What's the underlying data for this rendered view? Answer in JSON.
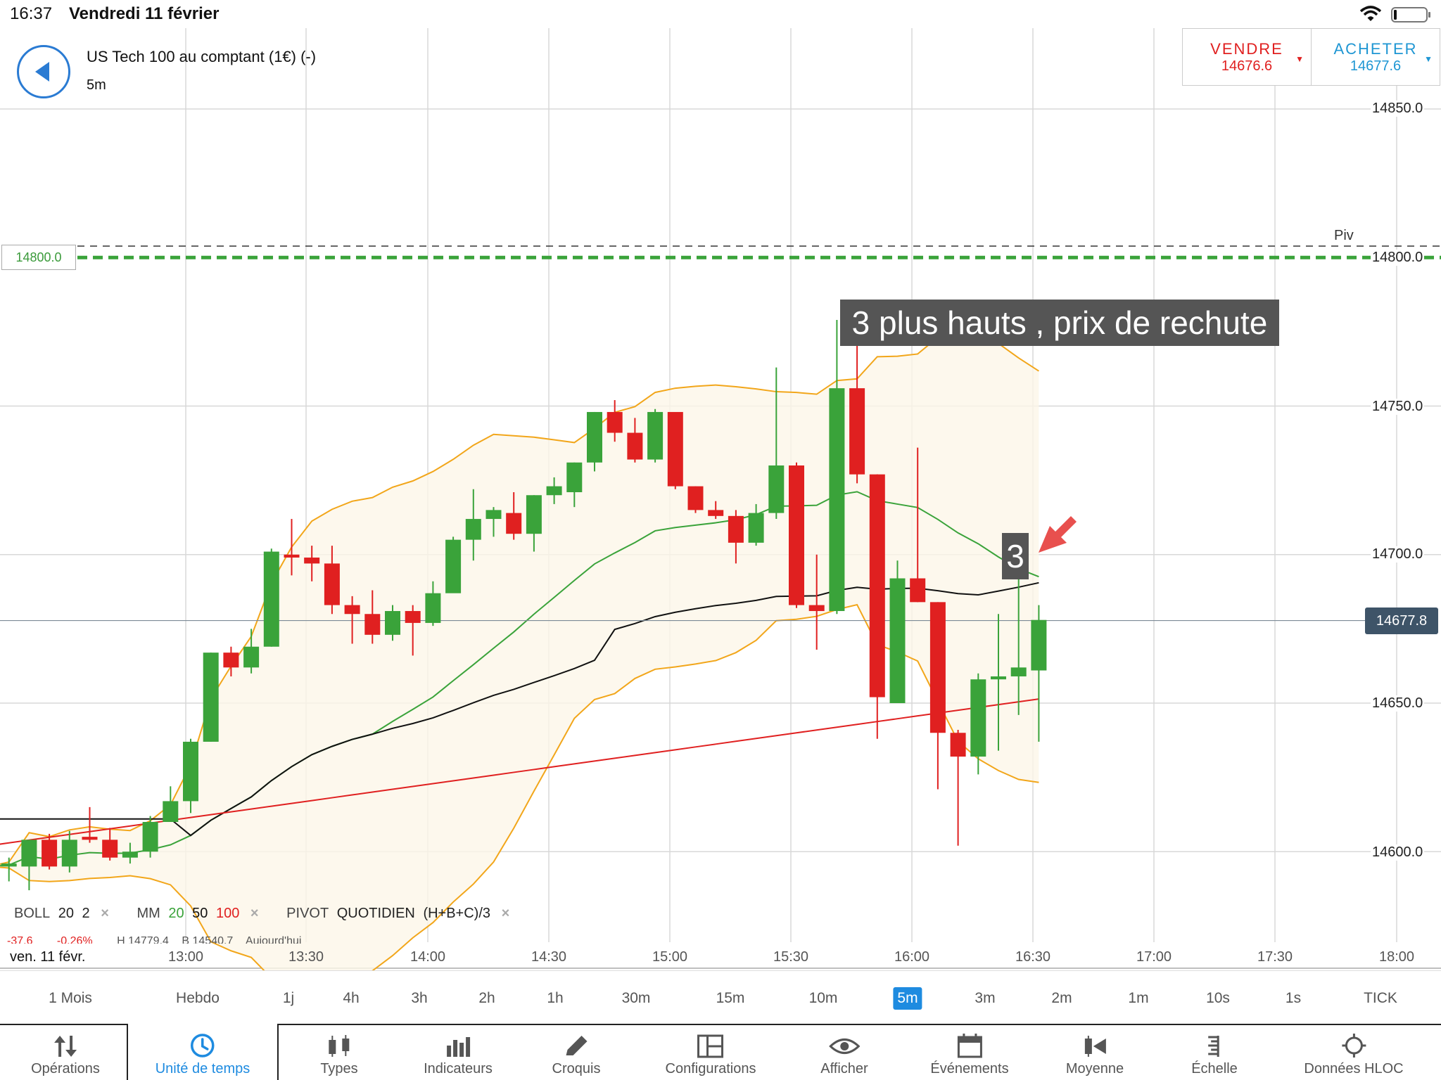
{
  "status": {
    "time": "16:37",
    "date": "Vendredi 11 février"
  },
  "instrument": {
    "name": "US Tech 100 au comptant (1€) (-)",
    "timeframe": "5m"
  },
  "trade": {
    "sell": {
      "label": "VENDRE",
      "price": "14676.6",
      "color": "#e02020"
    },
    "buy": {
      "label": "ACHETER",
      "price": "14677.6",
      "color": "#1e96d3"
    }
  },
  "annotations": {
    "main": "3 plus hauts , prix de rechute",
    "count": "3"
  },
  "levels": {
    "pivot": "14800.0",
    "pivot_label": "Piv",
    "current": "14677.8"
  },
  "y_axis": [
    "14850.0",
    "14800.0",
    "14750.0",
    "14700.0",
    "14650.0",
    "14600.0"
  ],
  "x_axis": {
    "date": "ven. 11 févr.",
    "ticks": [
      "13:00",
      "13:30",
      "14:00",
      "14:30",
      "15:00",
      "15:30",
      "16:00",
      "16:30",
      "17:00",
      "17:30",
      "18:00"
    ]
  },
  "legend": {
    "boll": {
      "name": "BOLL",
      "p1": "20",
      "p2": "2"
    },
    "mm": {
      "name": "MM",
      "p1": "20",
      "p2": "50",
      "p3": "100"
    },
    "pivot": {
      "name": "PIVOT",
      "p1": "QUOTIDIEN",
      "p2": "(H+B+C)/3"
    },
    "remove": "×"
  },
  "stats": {
    "change": "-37.6",
    "pct": "-0.26%",
    "high": "H 14779.4",
    "low": "B 14540.7",
    "session": "Aujourd'hui"
  },
  "timeframes": [
    "1 Mois",
    "Hebdo",
    "1j",
    "4h",
    "3h",
    "2h",
    "1h",
    "30m",
    "15m",
    "10m",
    "5m",
    "3m",
    "2m",
    "1m",
    "10s",
    "1s",
    "TICK"
  ],
  "active_timeframe": "5m",
  "toolbar": [
    "Opérations",
    "Unité de temps",
    "Types",
    "Indicateurs",
    "Croquis",
    "Configurations",
    "Afficher",
    "Événements",
    "Moyenne",
    "Échelle",
    "Données HLOC"
  ],
  "active_tool": "Unité de temps",
  "colors": {
    "up": "#3aa33a",
    "down": "#e02020",
    "boll": "#f2a61a",
    "ma20": "#3aa33a",
    "ma50": "#111111",
    "ma100": "#e02020",
    "accent": "#1e8be0"
  },
  "chart_data": {
    "type": "candlestick",
    "x_start": "12:00",
    "interval": "5m",
    "candles": [
      [
        14597,
        14600,
        14593,
        14595
      ],
      [
        14595,
        14598,
        14590,
        14596
      ],
      [
        14595,
        14604,
        14587,
        14604
      ],
      [
        14604,
        14606,
        14594,
        14595
      ],
      [
        14595,
        14607,
        14593,
        14604
      ],
      [
        14605,
        14615,
        14603,
        14604
      ],
      [
        14604,
        14608,
        14597,
        14598
      ],
      [
        14598,
        14603,
        14596,
        14600
      ],
      [
        14600,
        14612,
        14598,
        14610
      ],
      [
        14610,
        14622,
        14610,
        14617
      ],
      [
        14617,
        14638,
        14613,
        14637
      ],
      [
        14637,
        14667,
        14637,
        14667
      ],
      [
        14667,
        14669,
        14659,
        14662
      ],
      [
        14662,
        14675,
        14660,
        14669
      ],
      [
        14669,
        14702,
        14669,
        14701
      ],
      [
        14700,
        14712,
        14693,
        14699
      ],
      [
        14699,
        14703,
        14691,
        14697
      ],
      [
        14697,
        14703,
        14680,
        14683
      ],
      [
        14683,
        14686,
        14670,
        14680
      ],
      [
        14680,
        14688,
        14670,
        14673
      ],
      [
        14673,
        14683,
        14671,
        14681
      ],
      [
        14681,
        14683,
        14666,
        14677
      ],
      [
        14677,
        14691,
        14676,
        14687
      ],
      [
        14687,
        14706,
        14688,
        14705
      ],
      [
        14705,
        14722,
        14698,
        14712
      ],
      [
        14712,
        14716,
        14706,
        14715
      ],
      [
        14714,
        14721,
        14705,
        14707
      ],
      [
        14707,
        14720,
        14701,
        14720
      ],
      [
        14720,
        14726,
        14717,
        14723
      ],
      [
        14721,
        14731,
        14716,
        14731
      ],
      [
        14731,
        14748,
        14728,
        14748
      ],
      [
        14748,
        14752,
        14738,
        14741
      ],
      [
        14741,
        14746,
        14731,
        14732
      ],
      [
        14732,
        14749,
        14731,
        14748
      ],
      [
        14748,
        14748,
        14722,
        14723
      ],
      [
        14723,
        14723,
        14714,
        14715
      ],
      [
        14715,
        14718,
        14712,
        14713
      ],
      [
        14713,
        14715,
        14697,
        14704
      ],
      [
        14704,
        14717,
        14703,
        14714
      ],
      [
        14714,
        14763,
        14712,
        14730
      ],
      [
        14730,
        14731,
        14682,
        14683
      ],
      [
        14683,
        14700,
        14668,
        14681
      ],
      [
        14681,
        14779,
        14680,
        14756
      ],
      [
        14756,
        14775,
        14724,
        14727
      ],
      [
        14727,
        14727,
        14638,
        14652
      ],
      [
        14650,
        14698,
        14650,
        14692
      ],
      [
        14692,
        14736,
        14684,
        14684
      ],
      [
        14684,
        14684,
        14621,
        14640
      ],
      [
        14640,
        14641,
        14602,
        14632
      ],
      [
        14632,
        14660,
        14626,
        14658
      ],
      [
        14658,
        14680,
        14634,
        14659
      ],
      [
        14659,
        14701,
        14646,
        14662
      ],
      [
        14661,
        14683,
        14637,
        14678
      ]
    ],
    "ylim": [
      14580,
      14860
    ]
  }
}
